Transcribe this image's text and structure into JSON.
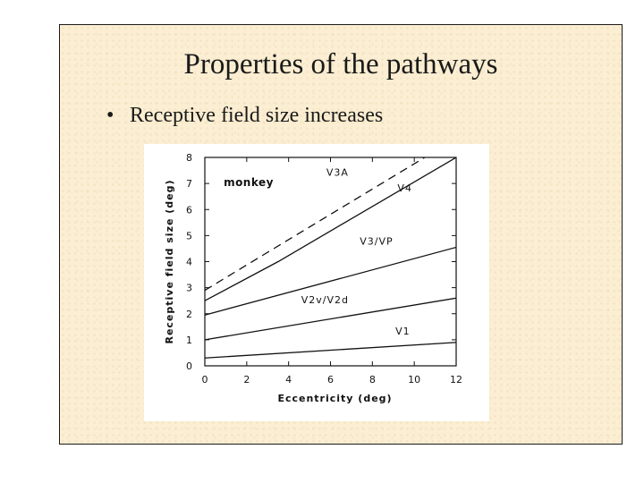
{
  "slide": {
    "title": "Properties of the pathways",
    "bullet": {
      "marker": "•",
      "text": "Receptive field size increases"
    }
  },
  "chart_data": {
    "type": "line",
    "title": "",
    "xlabel": "Eccentricity (deg)",
    "ylabel": "Receptive field size (deg)",
    "xlim": [
      0,
      12
    ],
    "ylim": [
      0,
      8
    ],
    "xticks": [
      0,
      2,
      4,
      6,
      8,
      10,
      12
    ],
    "yticks": [
      0,
      1,
      2,
      3,
      4,
      5,
      6,
      7,
      8
    ],
    "grid": false,
    "annotation": "monkey",
    "series": [
      {
        "name": "V1",
        "x": [
          0,
          12
        ],
        "y": [
          0.3,
          0.9
        ],
        "dash": false
      },
      {
        "name": "V2v/V2d",
        "x": [
          0,
          12
        ],
        "y": [
          1.0,
          2.6
        ],
        "dash": false
      },
      {
        "name": "V3/VP",
        "x": [
          0,
          12
        ],
        "y": [
          1.95,
          4.55
        ],
        "dash": false
      },
      {
        "name": "V4",
        "x": [
          0,
          3.5,
          12
        ],
        "y": [
          2.5,
          4.0,
          8.0
        ],
        "dash": false
      },
      {
        "name": "V3A",
        "x": [
          0,
          10.5
        ],
        "y": [
          2.9,
          8.0
        ],
        "dash": true
      }
    ]
  }
}
